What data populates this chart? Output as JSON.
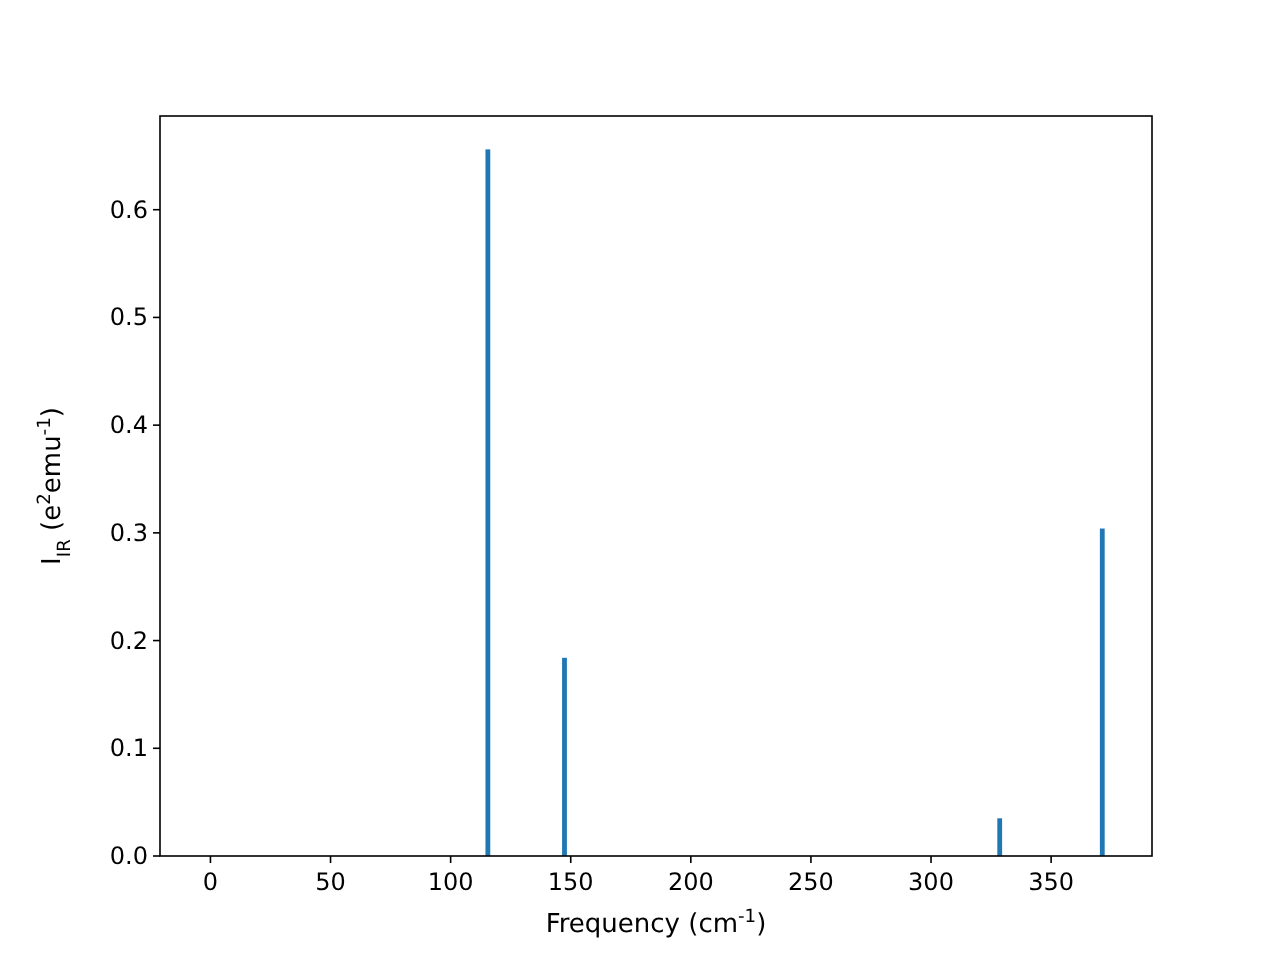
{
  "chart_data": {
    "type": "bar",
    "xlabel": "Frequency (cm$^{-1}$)",
    "ylabel": "I$_{IR}$ (e$^{2}$emu$^{-1}$)",
    "x": [
      115.5,
      147.4,
      328.6,
      371.3
    ],
    "values": [
      0.656,
      0.184,
      0.035,
      0.304
    ],
    "color": "#1f77b4",
    "xlim": [
      -21,
      392
    ],
    "xticks": [
      0,
      50,
      100,
      150,
      200,
      250,
      300,
      350
    ],
    "ylim": [
      0,
      0.687
    ],
    "yticks": [
      {
        "value": 0,
        "label": "0.0"
      },
      {
        "value": 0.1,
        "label": "0.1"
      },
      {
        "value": 0.2,
        "label": "0.2"
      },
      {
        "value": 0.3,
        "label": "0.3"
      },
      {
        "value": 0.4,
        "label": "0.4"
      },
      {
        "value": 0.5,
        "label": "0.5"
      },
      {
        "value": 0.6,
        "label": "0.6"
      }
    ],
    "grid": false
  }
}
